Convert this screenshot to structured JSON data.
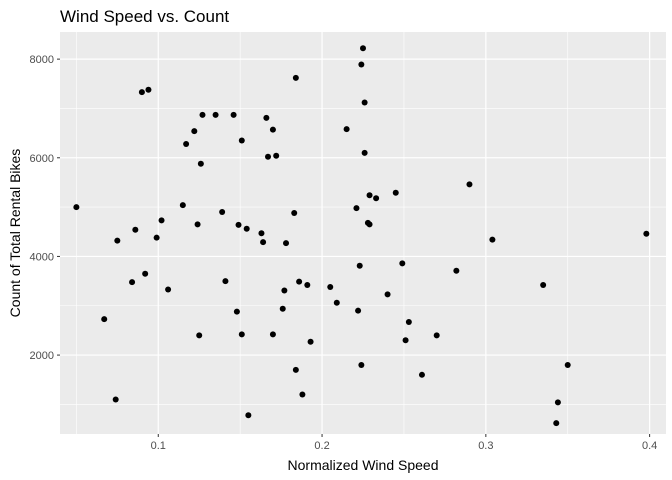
{
  "chart_data": {
    "type": "scatter",
    "title": "Wind Speed vs. Count",
    "xlabel": "Normalized Wind Speed",
    "ylabel": "Count of Total Rental Bikes",
    "xlim": [
      0.04,
      0.41
    ],
    "ylim": [
      400,
      8550
    ],
    "x_ticks": [
      0.1,
      0.2,
      0.3,
      0.4
    ],
    "x_tick_labels": [
      "0.1",
      "0.2",
      "0.3",
      "0.4"
    ],
    "y_ticks": [
      2000,
      4000,
      6000,
      8000
    ],
    "y_tick_labels": [
      "2000",
      "4000",
      "6000",
      "8000"
    ],
    "grid": true,
    "legend": "none",
    "colors": {
      "panel": "#ebebeb",
      "grid": "#ffffff",
      "point": "#000000"
    },
    "points": [
      {
        "x": 0.05,
        "y": 5000
      },
      {
        "x": 0.067,
        "y": 2730
      },
      {
        "x": 0.074,
        "y": 1100
      },
      {
        "x": 0.075,
        "y": 4320
      },
      {
        "x": 0.084,
        "y": 3480
      },
      {
        "x": 0.086,
        "y": 4540
      },
      {
        "x": 0.09,
        "y": 7330
      },
      {
        "x": 0.092,
        "y": 3650
      },
      {
        "x": 0.094,
        "y": 7380
      },
      {
        "x": 0.099,
        "y": 4380
      },
      {
        "x": 0.102,
        "y": 4730
      },
      {
        "x": 0.106,
        "y": 3330
      },
      {
        "x": 0.115,
        "y": 5040
      },
      {
        "x": 0.117,
        "y": 6280
      },
      {
        "x": 0.122,
        "y": 6540
      },
      {
        "x": 0.124,
        "y": 4650
      },
      {
        "x": 0.125,
        "y": 2400
      },
      {
        "x": 0.126,
        "y": 5880
      },
      {
        "x": 0.127,
        "y": 6870
      },
      {
        "x": 0.135,
        "y": 6870
      },
      {
        "x": 0.139,
        "y": 4900
      },
      {
        "x": 0.141,
        "y": 3500
      },
      {
        "x": 0.146,
        "y": 6870
      },
      {
        "x": 0.148,
        "y": 2880
      },
      {
        "x": 0.149,
        "y": 4640
      },
      {
        "x": 0.151,
        "y": 6350
      },
      {
        "x": 0.151,
        "y": 2420
      },
      {
        "x": 0.154,
        "y": 4560
      },
      {
        "x": 0.155,
        "y": 780
      },
      {
        "x": 0.163,
        "y": 4470
      },
      {
        "x": 0.164,
        "y": 4290
      },
      {
        "x": 0.166,
        "y": 6810
      },
      {
        "x": 0.167,
        "y": 6020
      },
      {
        "x": 0.17,
        "y": 6570
      },
      {
        "x": 0.17,
        "y": 2420
      },
      {
        "x": 0.172,
        "y": 6040
      },
      {
        "x": 0.176,
        "y": 2940
      },
      {
        "x": 0.177,
        "y": 3310
      },
      {
        "x": 0.178,
        "y": 4270
      },
      {
        "x": 0.183,
        "y": 4880
      },
      {
        "x": 0.184,
        "y": 7620
      },
      {
        "x": 0.184,
        "y": 1700
      },
      {
        "x": 0.186,
        "y": 3490
      },
      {
        "x": 0.188,
        "y": 1200
      },
      {
        "x": 0.191,
        "y": 3420
      },
      {
        "x": 0.193,
        "y": 2270
      },
      {
        "x": 0.205,
        "y": 3380
      },
      {
        "x": 0.209,
        "y": 3060
      },
      {
        "x": 0.215,
        "y": 6580
      },
      {
        "x": 0.221,
        "y": 4980
      },
      {
        "x": 0.222,
        "y": 2900
      },
      {
        "x": 0.223,
        "y": 3810
      },
      {
        "x": 0.224,
        "y": 7890
      },
      {
        "x": 0.224,
        "y": 1800
      },
      {
        "x": 0.225,
        "y": 8220
      },
      {
        "x": 0.226,
        "y": 7120
      },
      {
        "x": 0.226,
        "y": 6100
      },
      {
        "x": 0.228,
        "y": 4680
      },
      {
        "x": 0.229,
        "y": 5240
      },
      {
        "x": 0.229,
        "y": 4650
      },
      {
        "x": 0.233,
        "y": 5180
      },
      {
        "x": 0.24,
        "y": 3230
      },
      {
        "x": 0.245,
        "y": 5290
      },
      {
        "x": 0.249,
        "y": 3860
      },
      {
        "x": 0.251,
        "y": 2300
      },
      {
        "x": 0.253,
        "y": 2670
      },
      {
        "x": 0.261,
        "y": 1600
      },
      {
        "x": 0.27,
        "y": 2400
      },
      {
        "x": 0.282,
        "y": 3710
      },
      {
        "x": 0.29,
        "y": 5460
      },
      {
        "x": 0.304,
        "y": 4340
      },
      {
        "x": 0.335,
        "y": 3420
      },
      {
        "x": 0.343,
        "y": 620
      },
      {
        "x": 0.344,
        "y": 1040
      },
      {
        "x": 0.35,
        "y": 1800
      },
      {
        "x": 0.398,
        "y": 4460
      }
    ]
  }
}
